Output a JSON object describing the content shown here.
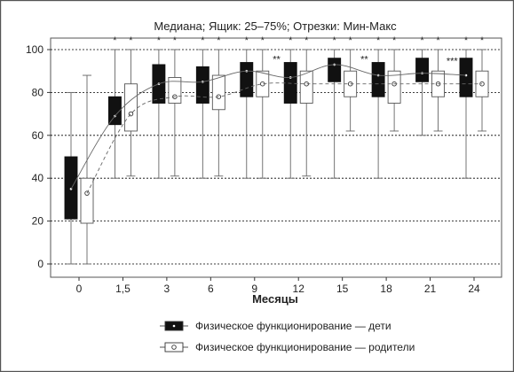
{
  "chart_data": {
    "type": "box",
    "title": "Медиана; Ящик: 25–75%; Отрезки: Мин-Макс",
    "xlabel": "Месяцы",
    "ylabel": "",
    "ylim": [
      0,
      100
    ],
    "yticks": [
      0,
      20,
      40,
      60,
      80,
      100
    ],
    "grid": true,
    "categories": [
      "0",
      "1,5",
      "3",
      "6",
      "9",
      "12",
      "15",
      "18",
      "21",
      "24"
    ],
    "series": [
      {
        "name": "Физическое функционирование — дети",
        "style": "filled",
        "color": "#111111",
        "min": [
          0,
          40,
          40,
          40,
          40,
          40,
          40,
          40,
          60,
          40
        ],
        "q1": [
          21,
          65,
          75,
          75,
          78,
          75,
          85,
          78,
          85,
          78
        ],
        "median": [
          35,
          69,
          84,
          85,
          90,
          87,
          93,
          88,
          89,
          88
        ],
        "q3": [
          50,
          78,
          93,
          92,
          94,
          94,
          96,
          94,
          96,
          96
        ],
        "max": [
          80,
          100,
          100,
          100,
          100,
          100,
          100,
          100,
          100,
          100
        ]
      },
      {
        "name": "Физическое функционирование — родители",
        "style": "open",
        "color": "#ffffff",
        "min": [
          0,
          41,
          41,
          41,
          40,
          41,
          62,
          62,
          62,
          62
        ],
        "q1": [
          19,
          62,
          75,
          72,
          78,
          75,
          78,
          75,
          78,
          78
        ],
        "median": [
          33,
          70,
          78,
          78,
          84,
          84,
          84,
          84,
          84,
          84
        ],
        "q3": [
          40,
          84,
          87,
          88,
          90,
          90,
          90,
          90,
          90,
          90
        ],
        "max": [
          88,
          100,
          100,
          100,
          100,
          100,
          100,
          100,
          100,
          100
        ]
      }
    ],
    "annotations": {
      "single_star": [
        1,
        2,
        3,
        4,
        5,
        6,
        7,
        8,
        9
      ],
      "double_star_between": [
        4,
        6
      ],
      "triple_star_between": [
        8
      ]
    },
    "legend_position": "bottom"
  }
}
